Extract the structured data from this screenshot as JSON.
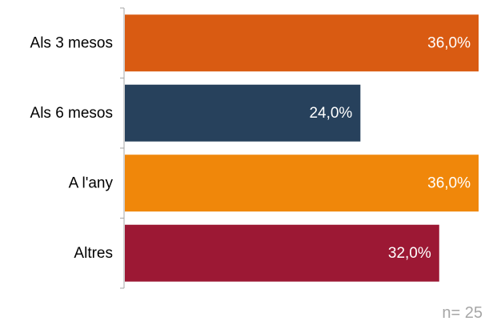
{
  "chart_data": {
    "type": "bar",
    "orientation": "horizontal",
    "categories": [
      "Als 3 mesos",
      "Als 6 mesos",
      "A l'any",
      "Altres"
    ],
    "values": [
      36.0,
      24.0,
      36.0,
      32.0
    ],
    "value_labels": [
      "36,0%",
      "24,0%",
      "36,0%",
      "32,0%"
    ],
    "colors": [
      "#D95B12",
      "#27415C",
      "#F0870A",
      "#9C1834"
    ],
    "xlim": [
      0,
      36.0
    ],
    "grid": false,
    "legend": "none",
    "title": "",
    "xlabel": "",
    "ylabel": ""
  },
  "note": "n= 25"
}
